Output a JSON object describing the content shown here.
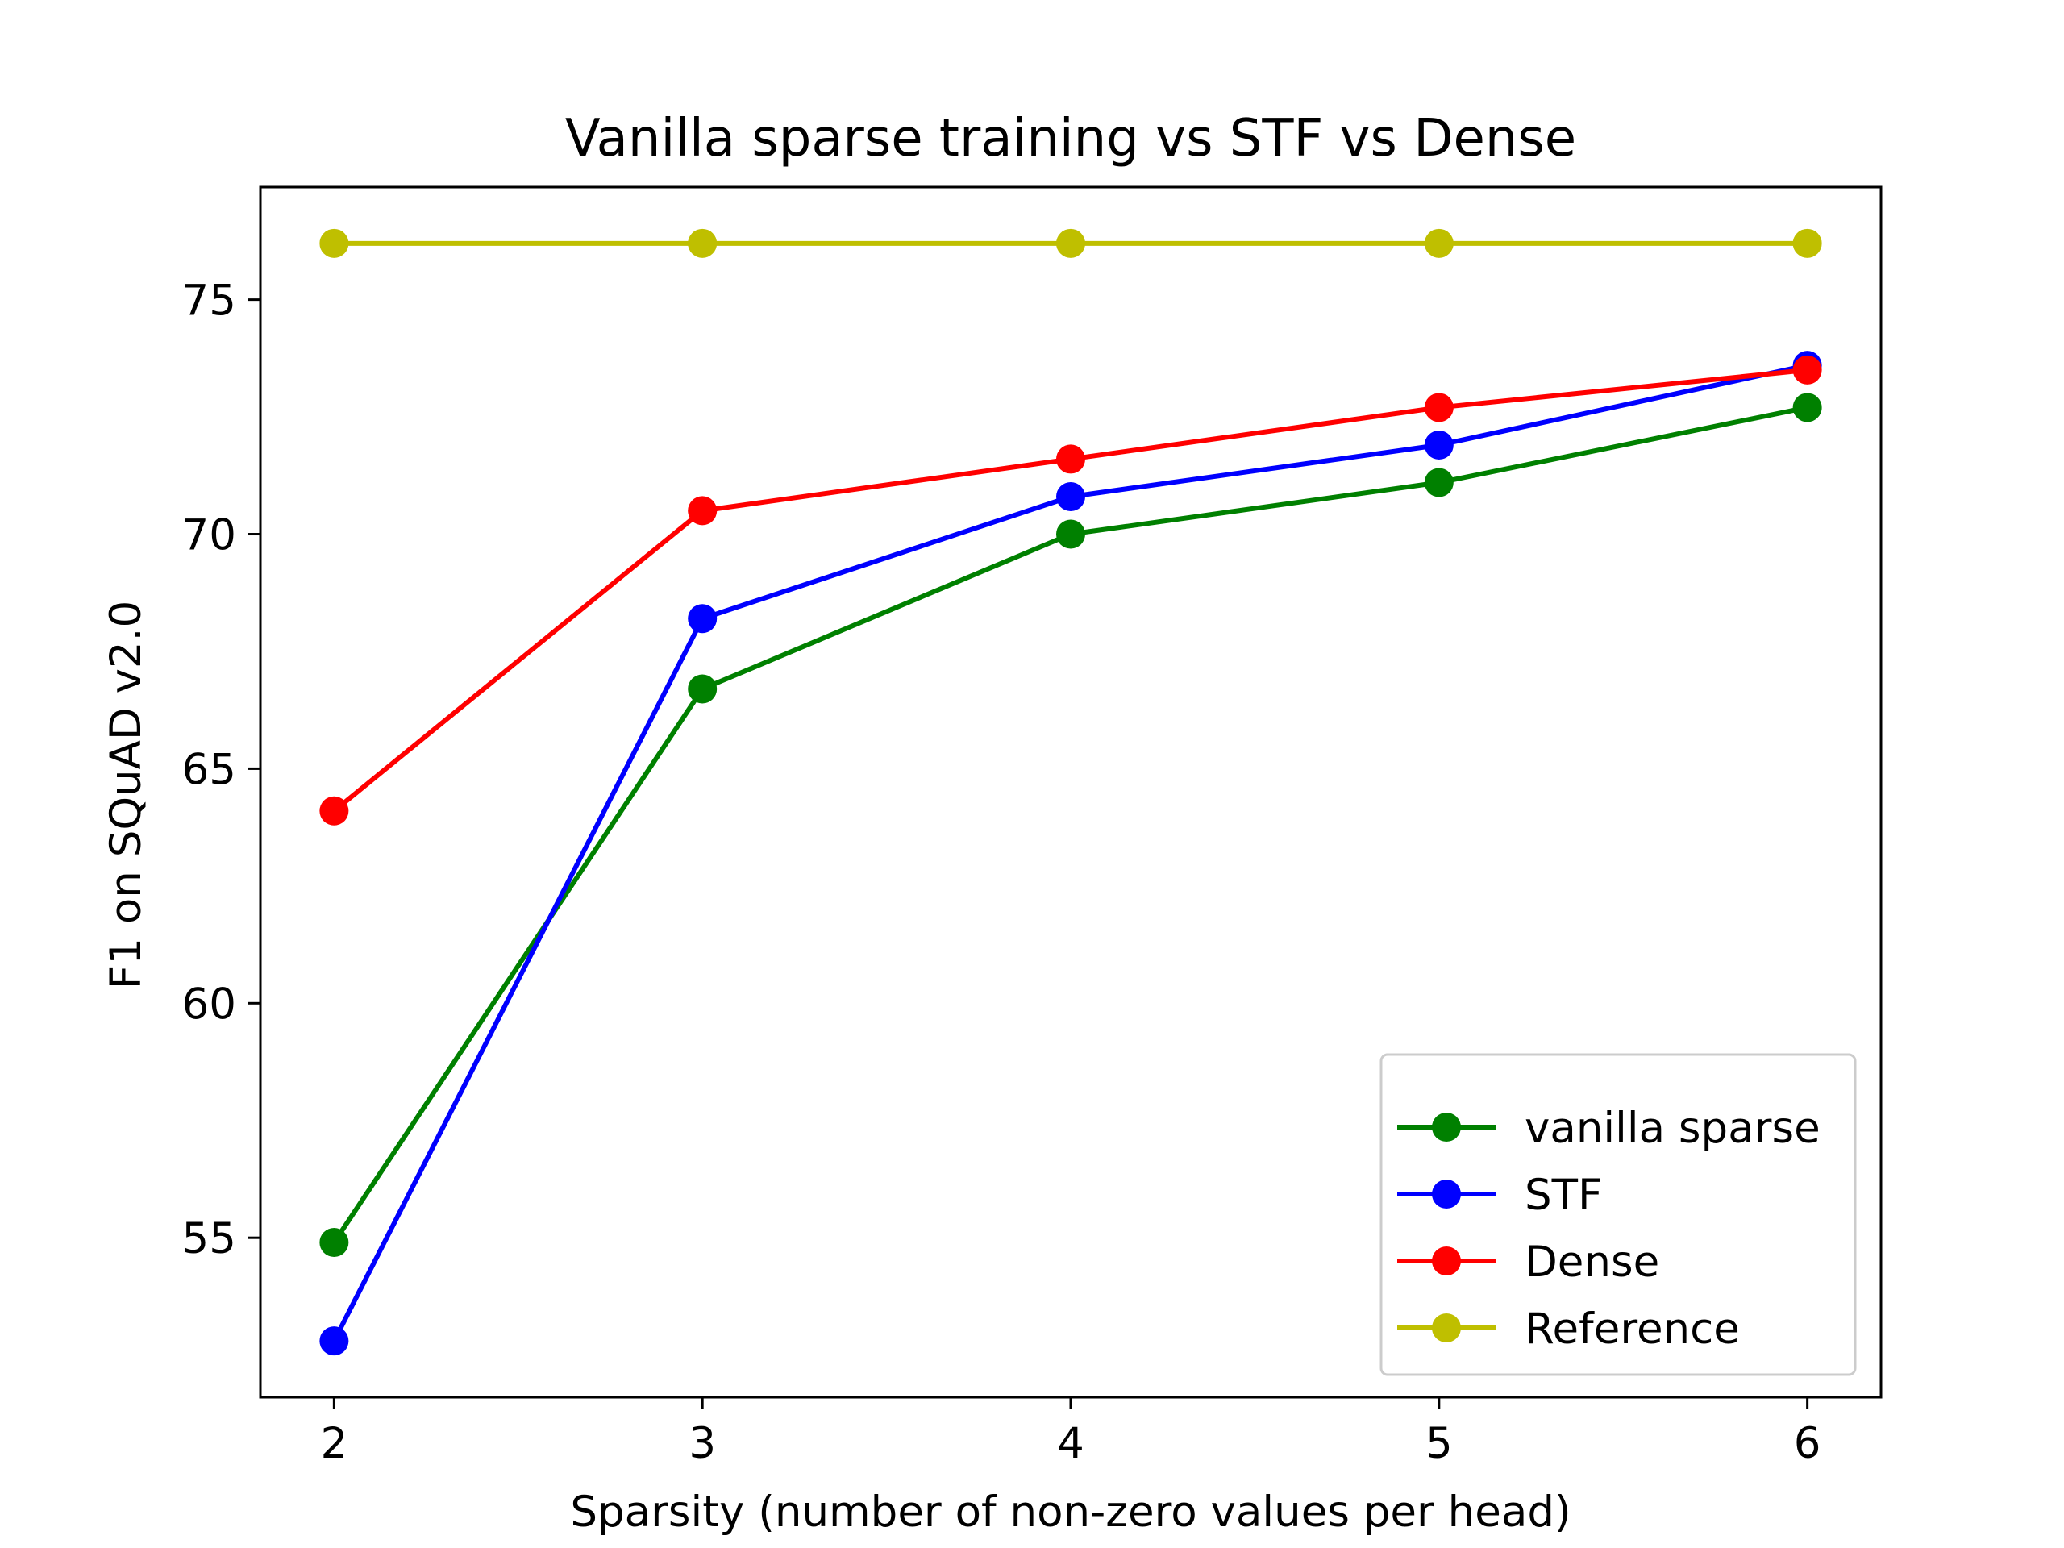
{
  "chart_data": {
    "type": "line",
    "title": "Vanilla sparse training vs STF vs Dense",
    "xlabel": "Sparsity (number of non-zero values per head)",
    "ylabel": "F1 on SQuAD v2.0",
    "x": [
      2,
      3,
      4,
      5,
      6
    ],
    "xlim": [
      1.8,
      6.2
    ],
    "ylim": [
      51.6,
      77.4
    ],
    "xticks": [
      "2",
      "3",
      "4",
      "5",
      "6"
    ],
    "yticks": [
      "55",
      "60",
      "65",
      "70",
      "75"
    ],
    "grid": false,
    "legend_position": "lower-right",
    "series": [
      {
        "name": "vanilla sparse",
        "color": "#008000",
        "values": [
          54.9,
          66.7,
          70.0,
          71.1,
          72.7
        ]
      },
      {
        "name": "STF",
        "color": "#0000ff",
        "values": [
          52.8,
          68.2,
          70.8,
          71.9,
          73.6
        ]
      },
      {
        "name": "Dense",
        "color": "#ff0000",
        "values": [
          64.1,
          70.5,
          71.6,
          72.7,
          73.5
        ]
      },
      {
        "name": "Reference",
        "color": "#bfbf00",
        "values": [
          76.2,
          76.2,
          76.2,
          76.2,
          76.2
        ]
      }
    ]
  }
}
